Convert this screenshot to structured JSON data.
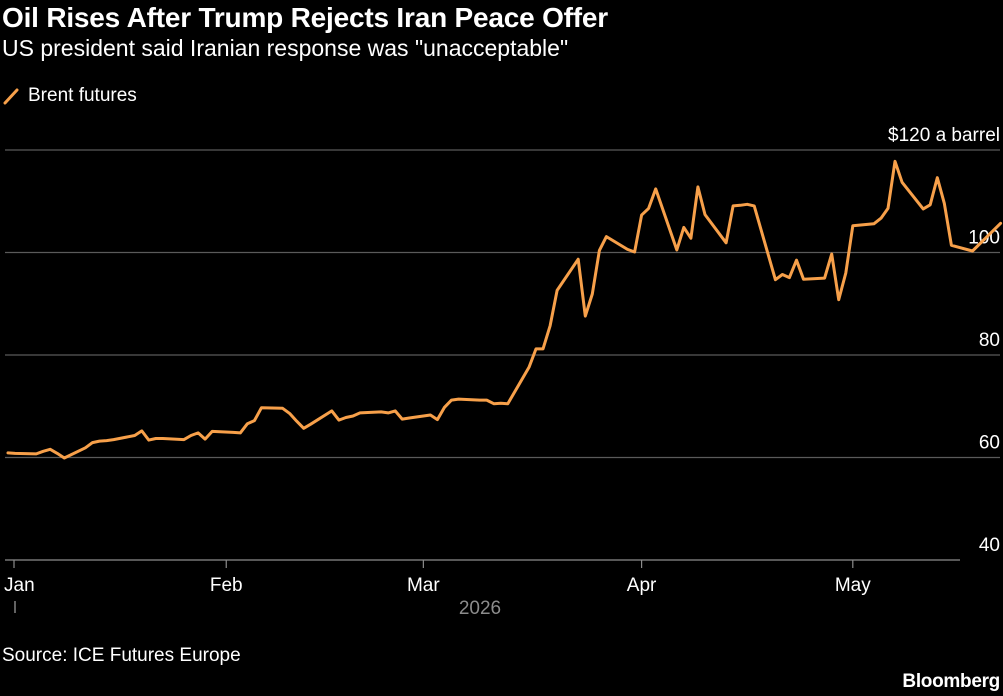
{
  "header": {
    "title": "Oil Rises After Trump Rejects Iran Peace Offer",
    "subtitle": "US president said Iranian response was \"unacceptable\""
  },
  "footer": {
    "source": "Source: ICE Futures Europe",
    "logo": "Bloomberg"
  },
  "chart_data": {
    "type": "line",
    "title": "Oil Rises After Trump Rejects Iran Peace Offer",
    "subtitle": "US president said Iranian response was \"unacceptable\"",
    "xlabel": "2026",
    "ylabel": "",
    "ylim": [
      40,
      120
    ],
    "yticks": [
      {
        "value": 40,
        "label": "40"
      },
      {
        "value": 60,
        "label": "60"
      },
      {
        "value": 80,
        "label": "80"
      },
      {
        "value": 100,
        "label": "100"
      },
      {
        "value": 120,
        "label": "$120 a barrel"
      }
    ],
    "xticks": [
      "Jan",
      "Feb",
      "Mar",
      "Apr",
      "May"
    ],
    "year_label": "2026",
    "grid": true,
    "legend_position": "top-left",
    "colors": {
      "line": "#f7a04a",
      "grid": "#5a5a5a",
      "axis": "#8c8c8c",
      "text": "#ffffff",
      "background": "#000000"
    },
    "series": [
      {
        "name": "Brent futures",
        "values": [
          [
            "2026-01-01",
            60.9
          ],
          [
            "2026-01-02",
            60.8
          ],
          [
            "2026-01-05",
            60.7
          ],
          [
            "2026-01-06",
            61.2
          ],
          [
            "2026-01-07",
            61.6
          ],
          [
            "2026-01-08",
            60.8
          ],
          [
            "2026-01-09",
            59.9
          ],
          [
            "2026-01-12",
            61.9
          ],
          [
            "2026-01-13",
            62.9
          ],
          [
            "2026-01-14",
            63.2
          ],
          [
            "2026-01-15",
            63.3
          ],
          [
            "2026-01-16",
            63.5
          ],
          [
            "2026-01-19",
            64.3
          ],
          [
            "2026-01-20",
            65.2
          ],
          [
            "2026-01-21",
            63.4
          ],
          [
            "2026-01-22",
            63.7
          ],
          [
            "2026-01-23",
            63.7
          ],
          [
            "2026-01-26",
            63.5
          ],
          [
            "2026-01-27",
            64.3
          ],
          [
            "2026-01-28",
            64.8
          ],
          [
            "2026-01-29",
            63.6
          ],
          [
            "2026-01-30",
            65.1
          ],
          [
            "2026-02-02",
            64.9
          ],
          [
            "2026-02-03",
            64.8
          ],
          [
            "2026-02-04",
            66.6
          ],
          [
            "2026-02-05",
            67.2
          ],
          [
            "2026-02-06",
            69.7
          ],
          [
            "2026-02-09",
            69.6
          ],
          [
            "2026-02-10",
            68.6
          ],
          [
            "2026-02-11",
            67.1
          ],
          [
            "2026-02-12",
            65.7
          ],
          [
            "2026-02-13",
            66.5
          ],
          [
            "2026-02-16",
            69.1
          ],
          [
            "2026-02-17",
            67.3
          ],
          [
            "2026-02-18",
            67.8
          ],
          [
            "2026-02-19",
            68.1
          ],
          [
            "2026-02-20",
            68.7
          ],
          [
            "2026-02-23",
            68.9
          ],
          [
            "2026-02-24",
            68.7
          ],
          [
            "2026-02-25",
            69.1
          ],
          [
            "2026-02-26",
            67.5
          ],
          [
            "2026-02-27",
            67.7
          ],
          [
            "2026-03-02",
            68.3
          ],
          [
            "2026-03-03",
            67.4
          ],
          [
            "2026-03-04",
            69.8
          ],
          [
            "2026-03-05",
            71.2
          ],
          [
            "2026-03-06",
            71.4
          ],
          [
            "2026-03-09",
            71.2
          ],
          [
            "2026-03-10",
            71.2
          ],
          [
            "2026-03-11",
            70.5
          ],
          [
            "2026-03-12",
            70.6
          ],
          [
            "2026-03-13",
            70.5
          ],
          [
            "2026-03-16",
            77.6
          ],
          [
            "2026-03-17",
            81.2
          ],
          [
            "2026-03-18",
            81.2
          ],
          [
            "2026-03-19",
            85.7
          ],
          [
            "2026-03-20",
            92.6
          ],
          [
            "2026-03-23",
            98.7
          ],
          [
            "2026-03-24",
            87.6
          ],
          [
            "2026-03-25",
            91.9
          ],
          [
            "2026-03-26",
            100.4
          ],
          [
            "2026-03-27",
            103.1
          ],
          [
            "2026-03-30",
            100.6
          ],
          [
            "2026-03-31",
            100.1
          ],
          [
            "2026-04-01",
            107.3
          ],
          [
            "2026-04-02",
            108.6
          ],
          [
            "2026-04-03",
            112.4
          ],
          [
            "2026-04-06",
            100.5
          ],
          [
            "2026-04-07",
            104.9
          ],
          [
            "2026-04-08",
            102.8
          ],
          [
            "2026-04-09",
            112.8
          ],
          [
            "2026-04-10",
            107.4
          ],
          [
            "2026-04-13",
            101.9
          ],
          [
            "2026-04-14",
            109.1
          ],
          [
            "2026-04-15",
            109.2
          ],
          [
            "2026-04-16",
            109.4
          ],
          [
            "2026-04-17",
            109.1
          ],
          [
            "2026-04-20",
            94.7
          ],
          [
            "2026-04-21",
            95.7
          ],
          [
            "2026-04-22",
            95.1
          ],
          [
            "2026-04-23",
            98.5
          ],
          [
            "2026-04-24",
            94.8
          ],
          [
            "2026-04-27",
            95.0
          ],
          [
            "2026-04-28",
            99.7
          ],
          [
            "2026-04-29",
            90.8
          ],
          [
            "2026-04-30",
            96.0
          ],
          [
            "2026-05-01",
            105.2
          ],
          [
            "2026-05-04",
            105.6
          ],
          [
            "2026-05-05",
            106.7
          ],
          [
            "2026-05-06",
            108.6
          ],
          [
            "2026-05-07",
            117.8
          ],
          [
            "2026-05-08",
            113.7
          ],
          [
            "2026-05-11",
            108.5
          ],
          [
            "2026-05-12",
            109.3
          ],
          [
            "2026-05-13",
            114.6
          ],
          [
            "2026-05-14",
            109.6
          ],
          [
            "2026-05-15",
            101.4
          ],
          [
            "2026-05-18",
            100.3
          ],
          [
            "2026-05-22",
            105.7
          ]
        ]
      }
    ]
  }
}
